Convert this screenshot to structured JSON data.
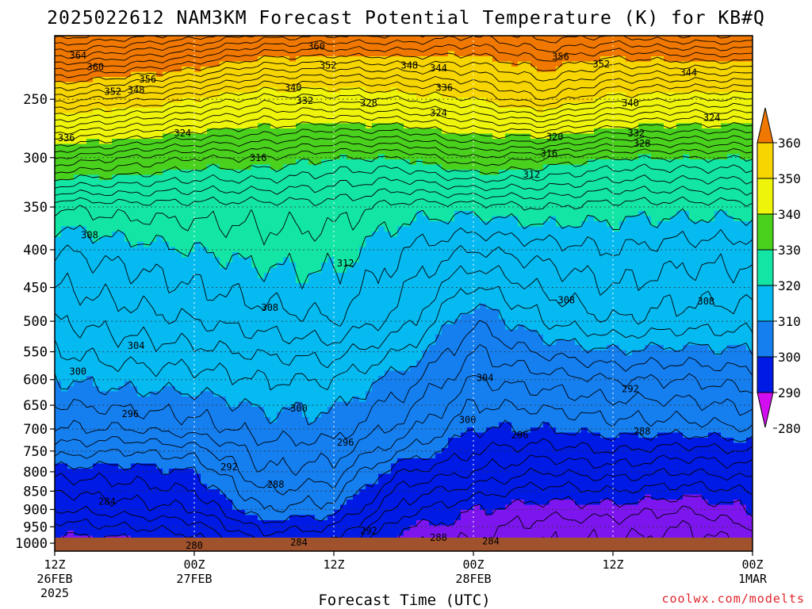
{
  "chart_data": {
    "type": "contour",
    "title": "2025022612 NAM3KM Forecast Potential Temperature (K) for KB#Q",
    "xlabel": "Forecast Time (UTC)",
    "x_ticks": [
      {
        "lines": [
          "12Z",
          "26FEB",
          "2025"
        ]
      },
      {
        "lines": [
          "00Z",
          "27FEB"
        ]
      },
      {
        "lines": [
          "12Z"
        ]
      },
      {
        "lines": [
          "00Z",
          "28FEB"
        ]
      },
      {
        "lines": [
          "12Z"
        ]
      },
      {
        "lines": [
          "00Z",
          "1MAR"
        ]
      }
    ],
    "x_range_hours": [
      0,
      60
    ],
    "y_axis": "pressure (hPa), log scale, inverted",
    "y_ticks": [
      250,
      300,
      350,
      400,
      450,
      500,
      550,
      600,
      650,
      700,
      750,
      800,
      850,
      900,
      950,
      1000
    ],
    "ylim": [
      1025,
      205
    ],
    "colorbar": {
      "levels": [
        360,
        350,
        340,
        330,
        320,
        310,
        300,
        290,
        280
      ],
      "colors": {
        "355": "#f07800",
        "345": "#f7d500",
        "335": "#eef50a",
        "325": "#49d11d",
        "315": "#13e5a5",
        "305": "#05baf0",
        "295": "#157ff0",
        "285": "#001ae6",
        "275": "#7d16ee",
        "270": "#d20ef0"
      }
    },
    "ground_color": "#a0522d",
    "contour_interval_K": 2,
    "theta_profiles": [
      {
        "hour": 0,
        "levels": [
          [
            1000,
            279
          ],
          [
            950,
            281
          ],
          [
            900,
            284
          ],
          [
            850,
            286
          ],
          [
            800,
            289
          ],
          [
            750,
            293
          ],
          [
            700,
            296
          ],
          [
            600,
            300
          ],
          [
            500,
            304
          ],
          [
            400,
            308
          ],
          [
            350,
            312
          ],
          [
            300,
            326
          ],
          [
            250,
            345
          ],
          [
            205,
            365
          ]
        ]
      },
      {
        "hour": 6,
        "levels": [
          [
            1000,
            279
          ],
          [
            950,
            282
          ],
          [
            900,
            285
          ],
          [
            850,
            287
          ],
          [
            800,
            289
          ],
          [
            750,
            292
          ],
          [
            700,
            296
          ],
          [
            600,
            301
          ],
          [
            500,
            305
          ],
          [
            400,
            309
          ],
          [
            350,
            313
          ],
          [
            300,
            324
          ],
          [
            250,
            343
          ],
          [
            205,
            363
          ]
        ]
      },
      {
        "hour": 12,
        "levels": [
          [
            1000,
            281
          ],
          [
            950,
            283
          ],
          [
            900,
            286
          ],
          [
            850,
            288
          ],
          [
            800,
            290
          ],
          [
            750,
            293
          ],
          [
            700,
            297
          ],
          [
            600,
            301
          ],
          [
            500,
            306
          ],
          [
            400,
            310
          ],
          [
            350,
            313
          ],
          [
            300,
            322
          ],
          [
            250,
            340
          ],
          [
            205,
            361
          ]
        ]
      },
      {
        "hour": 18,
        "levels": [
          [
            1000,
            286
          ],
          [
            950,
            289
          ],
          [
            900,
            292
          ],
          [
            850,
            294
          ],
          [
            800,
            296
          ],
          [
            750,
            297
          ],
          [
            700,
            299
          ],
          [
            600,
            302
          ],
          [
            500,
            307
          ],
          [
            400,
            311
          ],
          [
            350,
            313
          ],
          [
            300,
            322
          ],
          [
            250,
            337
          ],
          [
            205,
            357
          ]
        ]
      },
      {
        "hour": 24,
        "levels": [
          [
            1000,
            286
          ],
          [
            950,
            288
          ],
          [
            900,
            291
          ],
          [
            850,
            293
          ],
          [
            800,
            295
          ],
          [
            750,
            297
          ],
          [
            700,
            299
          ],
          [
            600,
            302
          ],
          [
            500,
            308
          ],
          [
            400,
            311
          ],
          [
            350,
            313
          ],
          [
            300,
            320
          ],
          [
            250,
            337
          ],
          [
            205,
            356
          ]
        ]
      },
      {
        "hour": 30,
        "levels": [
          [
            1000,
            278
          ],
          [
            950,
            280
          ],
          [
            900,
            283
          ],
          [
            850,
            285
          ],
          [
            800,
            288
          ],
          [
            750,
            292
          ],
          [
            700,
            295
          ],
          [
            600,
            299
          ],
          [
            500,
            305
          ],
          [
            400,
            308
          ],
          [
            350,
            311
          ],
          [
            300,
            320
          ],
          [
            250,
            338
          ],
          [
            205,
            356
          ]
        ]
      },
      {
        "hour": 36,
        "levels": [
          [
            1000,
            278
          ],
          [
            950,
            279
          ],
          [
            900,
            280
          ],
          [
            850,
            283
          ],
          [
            800,
            286
          ],
          [
            750,
            288
          ],
          [
            700,
            290
          ],
          [
            600,
            294
          ],
          [
            500,
            298
          ],
          [
            400,
            306
          ],
          [
            350,
            311
          ],
          [
            300,
            324
          ],
          [
            250,
            340
          ],
          [
            205,
            354
          ]
        ]
      },
      {
        "hour": 42,
        "levels": [
          [
            1000,
            276
          ],
          [
            950,
            277
          ],
          [
            900,
            279
          ],
          [
            850,
            281
          ],
          [
            800,
            284
          ],
          [
            750,
            287
          ],
          [
            700,
            290
          ],
          [
            600,
            295
          ],
          [
            500,
            302
          ],
          [
            400,
            307
          ],
          [
            350,
            312
          ],
          [
            300,
            322
          ],
          [
            250,
            344
          ],
          [
            205,
            357
          ]
        ]
      },
      {
        "hour": 48,
        "levels": [
          [
            1000,
            276
          ],
          [
            950,
            277
          ],
          [
            900,
            279
          ],
          [
            850,
            282
          ],
          [
            800,
            285
          ],
          [
            750,
            288
          ],
          [
            700,
            291
          ],
          [
            600,
            296
          ],
          [
            500,
            304
          ],
          [
            400,
            308
          ],
          [
            350,
            311
          ],
          [
            300,
            320
          ],
          [
            250,
            339
          ],
          [
            205,
            356
          ]
        ]
      },
      {
        "hour": 54,
        "levels": [
          [
            1000,
            275
          ],
          [
            950,
            276
          ],
          [
            900,
            278
          ],
          [
            850,
            281
          ],
          [
            800,
            284
          ],
          [
            750,
            287
          ],
          [
            700,
            291
          ],
          [
            600,
            296
          ],
          [
            500,
            303
          ],
          [
            400,
            307
          ],
          [
            350,
            311
          ],
          [
            300,
            320
          ],
          [
            250,
            338
          ],
          [
            205,
            358
          ]
        ]
      },
      {
        "hour": 60,
        "levels": [
          [
            1000,
            276
          ],
          [
            950,
            278
          ],
          [
            900,
            280
          ],
          [
            850,
            282
          ],
          [
            800,
            285
          ],
          [
            750,
            288
          ],
          [
            700,
            292
          ],
          [
            600,
            297
          ],
          [
            500,
            303
          ],
          [
            400,
            307
          ],
          [
            350,
            311
          ],
          [
            300,
            320
          ],
          [
            250,
            338
          ],
          [
            205,
            358
          ]
        ]
      }
    ],
    "contour_labels": [
      {
        "text": "364",
        "hour": 2.0,
        "p": 218
      },
      {
        "text": "360",
        "hour": 3.5,
        "p": 226
      },
      {
        "text": "360",
        "hour": 22.5,
        "p": 212
      },
      {
        "text": "356",
        "hour": 8.0,
        "p": 235
      },
      {
        "text": "352",
        "hour": 5.0,
        "p": 244
      },
      {
        "text": "348",
        "hour": 7.0,
        "p": 243
      },
      {
        "text": "352",
        "hour": 23.5,
        "p": 225
      },
      {
        "text": "348",
        "hour": 30.5,
        "p": 225
      },
      {
        "text": "344",
        "hour": 33.0,
        "p": 227
      },
      {
        "text": "356",
        "hour": 43.5,
        "p": 219
      },
      {
        "text": "352",
        "hour": 47.0,
        "p": 224
      },
      {
        "text": "344",
        "hour": 54.5,
        "p": 230
      },
      {
        "text": "340",
        "hour": 20.5,
        "p": 241
      },
      {
        "text": "336",
        "hour": 33.5,
        "p": 241
      },
      {
        "text": "332",
        "hour": 21.5,
        "p": 251
      },
      {
        "text": "328",
        "hour": 27.0,
        "p": 253
      },
      {
        "text": "324",
        "hour": 33.0,
        "p": 261
      },
      {
        "text": "340",
        "hour": 49.5,
        "p": 253
      },
      {
        "text": "324",
        "hour": 56.5,
        "p": 265
      },
      {
        "text": "336",
        "hour": 1.0,
        "p": 282
      },
      {
        "text": "324",
        "hour": 11.0,
        "p": 278
      },
      {
        "text": "320",
        "hour": 43.0,
        "p": 281
      },
      {
        "text": "332",
        "hour": 50.0,
        "p": 278
      },
      {
        "text": "328",
        "hour": 50.5,
        "p": 287
      },
      {
        "text": "316",
        "hour": 17.5,
        "p": 300
      },
      {
        "text": "316",
        "hour": 42.5,
        "p": 296
      },
      {
        "text": "312",
        "hour": 41.0,
        "p": 316
      },
      {
        "text": "308",
        "hour": 3.0,
        "p": 382
      },
      {
        "text": "312",
        "hour": 25.0,
        "p": 417
      },
      {
        "text": "308",
        "hour": 18.5,
        "p": 479
      },
      {
        "text": "308",
        "hour": 44.0,
        "p": 468
      },
      {
        "text": "308",
        "hour": 56.0,
        "p": 470
      },
      {
        "text": "304",
        "hour": 7.0,
        "p": 540
      },
      {
        "text": "304",
        "hour": 37.0,
        "p": 597
      },
      {
        "text": "300",
        "hour": 2.0,
        "p": 585
      },
      {
        "text": "300",
        "hour": 21.0,
        "p": 656
      },
      {
        "text": "300",
        "hour": 35.5,
        "p": 680
      },
      {
        "text": "296",
        "hour": 6.5,
        "p": 668
      },
      {
        "text": "296",
        "hour": 40.0,
        "p": 713
      },
      {
        "text": "296",
        "hour": 25.0,
        "p": 730
      },
      {
        "text": "292",
        "hour": 49.5,
        "p": 618
      },
      {
        "text": "292",
        "hour": 15.0,
        "p": 788
      },
      {
        "text": "288",
        "hour": 50.5,
        "p": 705
      },
      {
        "text": "288",
        "hour": 19.0,
        "p": 833
      },
      {
        "text": "284",
        "hour": 4.5,
        "p": 878
      },
      {
        "text": "292",
        "hour": 27.0,
        "p": 962
      },
      {
        "text": "288",
        "hour": 33.0,
        "p": 983
      },
      {
        "text": "284",
        "hour": 21.0,
        "p": 997
      },
      {
        "text": "284",
        "hour": 37.5,
        "p": 994
      },
      {
        "text": "280",
        "hour": 12.0,
        "p": 1008
      }
    ]
  },
  "footer": {
    "credit": "coolwx.com/modelts"
  }
}
